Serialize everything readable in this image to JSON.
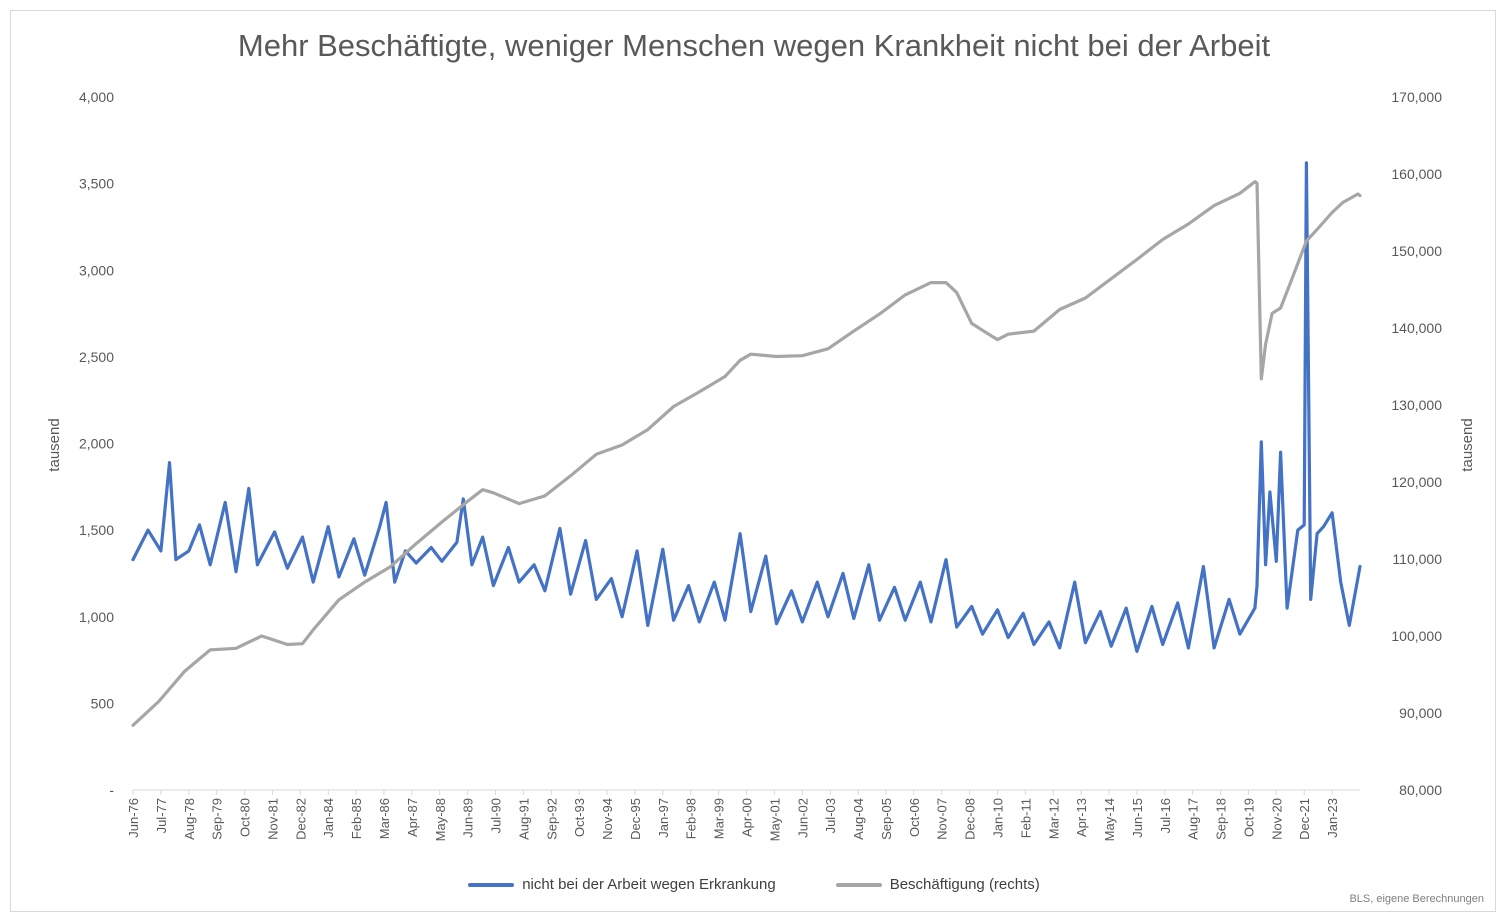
{
  "chart_data": {
    "type": "line",
    "title": "Mehr Beschäftigte, weniger Menschen wegen Krankheit nicht bei der Arbeit",
    "y_left_label": "tausend",
    "y_right_label": "tausend",
    "y_left_range": [
      0,
      4000
    ],
    "y_right_range": [
      80000,
      170000
    ],
    "y_left_ticks": [
      "-",
      "500",
      "1,000",
      "1,500",
      "2,000",
      "2,500",
      "3,000",
      "3,500",
      "4,000"
    ],
    "y_right_ticks": [
      "80,000",
      "90,000",
      "100,000",
      "110,000",
      "120,000",
      "130,000",
      "140,000",
      "150,000",
      "160,000",
      "170,000"
    ],
    "x_tick_labels": [
      "Jun-76",
      "Jul-77",
      "Aug-78",
      "Sep-79",
      "Oct-80",
      "Nov-81",
      "Dec-82",
      "Jan-84",
      "Feb-85",
      "Mar-86",
      "Apr-87",
      "May-88",
      "Jun-89",
      "Jul-90",
      "Aug-91",
      "Sep-92",
      "Oct-93",
      "Nov-94",
      "Dec-95",
      "Jan-97",
      "Feb-98",
      "Mar-99",
      "Apr-00",
      "May-01",
      "Jun-02",
      "Jul-03",
      "Aug-04",
      "Sep-05",
      "Oct-06",
      "Nov-07",
      "Dec-08",
      "Jan-10",
      "Feb-11",
      "Mar-12",
      "Apr-13",
      "May-14",
      "Jun-15",
      "Jul-16",
      "Aug-17",
      "Sep-18",
      "Oct-19",
      "Nov-20",
      "Dec-21",
      "Jan-23"
    ],
    "grid": false,
    "legend_position": "bottom",
    "x_start": "1976-06",
    "x_end": "2024-02",
    "series": [
      {
        "name": "nicht bei der Arbeit wegen Erkrankung",
        "axis": "left",
        "color": "#4472c4",
        "points": [
          [
            "1976-06",
            1330
          ],
          [
            "1977-01",
            1500
          ],
          [
            "1977-07",
            1380
          ],
          [
            "1977-11",
            1890
          ],
          [
            "1978-02",
            1330
          ],
          [
            "1978-08",
            1380
          ],
          [
            "1979-01",
            1530
          ],
          [
            "1979-06",
            1300
          ],
          [
            "1980-01",
            1660
          ],
          [
            "1980-06",
            1260
          ],
          [
            "1980-12",
            1740
          ],
          [
            "1981-04",
            1300
          ],
          [
            "1981-12",
            1490
          ],
          [
            "1982-06",
            1280
          ],
          [
            "1983-01",
            1460
          ],
          [
            "1983-06",
            1200
          ],
          [
            "1984-01",
            1520
          ],
          [
            "1984-06",
            1230
          ],
          [
            "1985-01",
            1450
          ],
          [
            "1985-06",
            1240
          ],
          [
            "1986-01",
            1520
          ],
          [
            "1986-04",
            1660
          ],
          [
            "1986-08",
            1200
          ],
          [
            "1987-01",
            1380
          ],
          [
            "1987-06",
            1310
          ],
          [
            "1988-01",
            1400
          ],
          [
            "1988-06",
            1320
          ],
          [
            "1989-01",
            1430
          ],
          [
            "1989-04",
            1680
          ],
          [
            "1989-08",
            1300
          ],
          [
            "1990-01",
            1460
          ],
          [
            "1990-06",
            1180
          ],
          [
            "1991-01",
            1400
          ],
          [
            "1991-06",
            1200
          ],
          [
            "1992-01",
            1300
          ],
          [
            "1992-06",
            1150
          ],
          [
            "1993-01",
            1510
          ],
          [
            "1993-06",
            1130
          ],
          [
            "1994-01",
            1440
          ],
          [
            "1994-06",
            1100
          ],
          [
            "1995-01",
            1220
          ],
          [
            "1995-06",
            1000
          ],
          [
            "1996-01",
            1380
          ],
          [
            "1996-06",
            950
          ],
          [
            "1997-01",
            1390
          ],
          [
            "1997-06",
            980
          ],
          [
            "1998-01",
            1180
          ],
          [
            "1998-06",
            970
          ],
          [
            "1999-01",
            1200
          ],
          [
            "1999-06",
            980
          ],
          [
            "2000-01",
            1480
          ],
          [
            "2000-06",
            1030
          ],
          [
            "2001-01",
            1350
          ],
          [
            "2001-06",
            960
          ],
          [
            "2002-01",
            1150
          ],
          [
            "2002-06",
            970
          ],
          [
            "2003-01",
            1200
          ],
          [
            "2003-06",
            1000
          ],
          [
            "2004-01",
            1250
          ],
          [
            "2004-06",
            990
          ],
          [
            "2005-01",
            1300
          ],
          [
            "2005-06",
            980
          ],
          [
            "2006-01",
            1170
          ],
          [
            "2006-06",
            980
          ],
          [
            "2007-01",
            1200
          ],
          [
            "2007-06",
            970
          ],
          [
            "2008-01",
            1330
          ],
          [
            "2008-06",
            940
          ],
          [
            "2009-01",
            1060
          ],
          [
            "2009-06",
            900
          ],
          [
            "2010-01",
            1040
          ],
          [
            "2010-06",
            880
          ],
          [
            "2011-01",
            1020
          ],
          [
            "2011-06",
            840
          ],
          [
            "2012-01",
            970
          ],
          [
            "2012-06",
            820
          ],
          [
            "2013-01",
            1200
          ],
          [
            "2013-06",
            850
          ],
          [
            "2014-01",
            1030
          ],
          [
            "2014-06",
            830
          ],
          [
            "2015-01",
            1050
          ],
          [
            "2015-06",
            800
          ],
          [
            "2016-01",
            1060
          ],
          [
            "2016-06",
            840
          ],
          [
            "2017-01",
            1080
          ],
          [
            "2017-06",
            820
          ],
          [
            "2018-01",
            1290
          ],
          [
            "2018-06",
            820
          ],
          [
            "2019-01",
            1100
          ],
          [
            "2019-06",
            900
          ],
          [
            "2020-01",
            1050
          ],
          [
            "2020-02",
            1180
          ],
          [
            "2020-04",
            2010
          ],
          [
            "2020-06",
            1300
          ],
          [
            "2020-08",
            1720
          ],
          [
            "2020-11",
            1320
          ],
          [
            "2021-01",
            1950
          ],
          [
            "2021-04",
            1050
          ],
          [
            "2021-09",
            1500
          ],
          [
            "2021-12",
            1530
          ],
          [
            "2022-01",
            3620
          ],
          [
            "2022-03",
            1100
          ],
          [
            "2022-06",
            1480
          ],
          [
            "2022-09",
            1520
          ],
          [
            "2023-01",
            1600
          ],
          [
            "2023-05",
            1200
          ],
          [
            "2023-09",
            950
          ],
          [
            "2024-02",
            1290
          ]
        ]
      },
      {
        "name": "Beschäftigung (rechts)",
        "axis": "right",
        "color": "#a6a6a6",
        "points": [
          [
            "1976-06",
            88400
          ],
          [
            "1977-06",
            91500
          ],
          [
            "1978-06",
            95400
          ],
          [
            "1979-06",
            98200
          ],
          [
            "1980-06",
            98400
          ],
          [
            "1981-06",
            100000
          ],
          [
            "1982-06",
            98900
          ],
          [
            "1983-01",
            99000
          ],
          [
            "1983-06",
            100800
          ],
          [
            "1984-06",
            104700
          ],
          [
            "1985-06",
            107000
          ],
          [
            "1986-06",
            109000
          ],
          [
            "1987-06",
            112000
          ],
          [
            "1988-06",
            114800
          ],
          [
            "1989-06",
            117500
          ],
          [
            "1990-01",
            119000
          ],
          [
            "1990-06",
            118600
          ],
          [
            "1991-06",
            117200
          ],
          [
            "1992-06",
            118200
          ],
          [
            "1993-06",
            120800
          ],
          [
            "1994-06",
            123600
          ],
          [
            "1995-06",
            124800
          ],
          [
            "1996-06",
            126800
          ],
          [
            "1997-06",
            129800
          ],
          [
            "1998-06",
            131700
          ],
          [
            "1999-06",
            133700
          ],
          [
            "2000-01",
            135800
          ],
          [
            "2000-06",
            136600
          ],
          [
            "2001-06",
            136300
          ],
          [
            "2002-06",
            136400
          ],
          [
            "2003-06",
            137300
          ],
          [
            "2004-06",
            139600
          ],
          [
            "2005-06",
            141800
          ],
          [
            "2006-06",
            144300
          ],
          [
            "2007-06",
            145900
          ],
          [
            "2008-01",
            145900
          ],
          [
            "2008-06",
            144600
          ],
          [
            "2009-01",
            140600
          ],
          [
            "2009-06",
            139700
          ],
          [
            "2010-01",
            138500
          ],
          [
            "2010-06",
            139200
          ],
          [
            "2011-06",
            139600
          ],
          [
            "2012-06",
            142400
          ],
          [
            "2013-06",
            143900
          ],
          [
            "2014-06",
            146400
          ],
          [
            "2015-06",
            148900
          ],
          [
            "2016-06",
            151500
          ],
          [
            "2017-06",
            153500
          ],
          [
            "2018-06",
            155900
          ],
          [
            "2019-06",
            157500
          ],
          [
            "2020-01",
            159000
          ],
          [
            "2020-02",
            158800
          ],
          [
            "2020-04",
            133400
          ],
          [
            "2020-06",
            137900
          ],
          [
            "2020-09",
            141900
          ],
          [
            "2021-01",
            142600
          ],
          [
            "2021-06",
            146200
          ],
          [
            "2022-01",
            151300
          ],
          [
            "2022-06",
            152800
          ],
          [
            "2023-01",
            155000
          ],
          [
            "2023-06",
            156300
          ],
          [
            "2024-01",
            157400
          ],
          [
            "2024-02",
            157200
          ]
        ]
      }
    ]
  },
  "source_note": "BLS, eigene Berechnungen"
}
